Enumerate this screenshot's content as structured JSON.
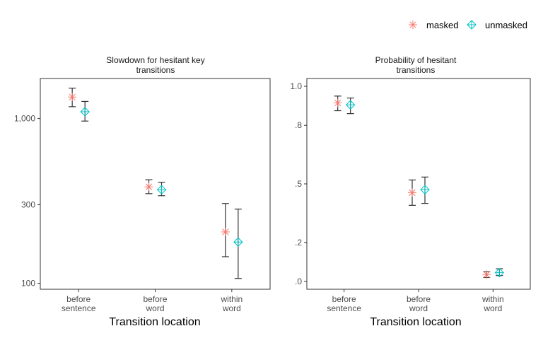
{
  "legend": {
    "entries": [
      {
        "label": "masked",
        "color": "#F8766D",
        "shape": "asterisk"
      },
      {
        "label": "unmasked",
        "color": "#00BFC4",
        "shape": "diamond-plus"
      }
    ]
  },
  "chart_data": [
    {
      "type": "scatter",
      "title_line1": "Slowdown for hesitant key",
      "title_line2": "transitions",
      "xlabel": "Transition location",
      "ylabel": "",
      "y_scale": "log",
      "ylim": [
        92,
        1750
      ],
      "y_ticks": [
        100,
        300,
        1000
      ],
      "y_tick_labels": [
        "100",
        "300",
        "1,000"
      ],
      "categories": [
        [
          "before",
          "sentence"
        ],
        [
          "before",
          "word"
        ],
        [
          "within",
          "word"
        ]
      ],
      "series": [
        {
          "name": "masked",
          "color": "#F8766D",
          "shape": "asterisk",
          "values": [
            1350,
            385,
            205
          ],
          "lower": [
            1180,
            350,
            145
          ],
          "upper": [
            1530,
            425,
            305
          ]
        },
        {
          "name": "unmasked",
          "color": "#00BFC4",
          "shape": "diamond-plus",
          "values": [
            1100,
            370,
            178
          ],
          "lower": [
            965,
            340,
            107
          ],
          "upper": [
            1270,
            410,
            282
          ]
        }
      ]
    },
    {
      "type": "scatter",
      "title_line1": "Probability of hesitant",
      "title_line2": "transitions",
      "xlabel": "Transition location",
      "ylabel": "",
      "y_scale": "linear",
      "ylim": [
        -0.04,
        1.04
      ],
      "y_ticks": [
        0,
        0.2,
        0.5,
        0.8,
        1.0
      ],
      "y_tick_labels": [
        ".0",
        ".2",
        ".5",
        ".8",
        "1.0"
      ],
      "categories": [
        [
          "before",
          "sentence"
        ],
        [
          "before",
          "word"
        ],
        [
          "within",
          "word"
        ]
      ],
      "series": [
        {
          "name": "masked",
          "color": "#F8766D",
          "shape": "asterisk",
          "values": [
            0.915,
            0.455,
            0.035
          ],
          "lower": [
            0.875,
            0.39,
            0.02
          ],
          "upper": [
            0.95,
            0.52,
            0.05
          ]
        },
        {
          "name": "unmasked",
          "color": "#00BFC4",
          "shape": "diamond-plus",
          "values": [
            0.905,
            0.47,
            0.045
          ],
          "lower": [
            0.86,
            0.4,
            0.03
          ],
          "upper": [
            0.94,
            0.535,
            0.065
          ]
        }
      ]
    }
  ]
}
